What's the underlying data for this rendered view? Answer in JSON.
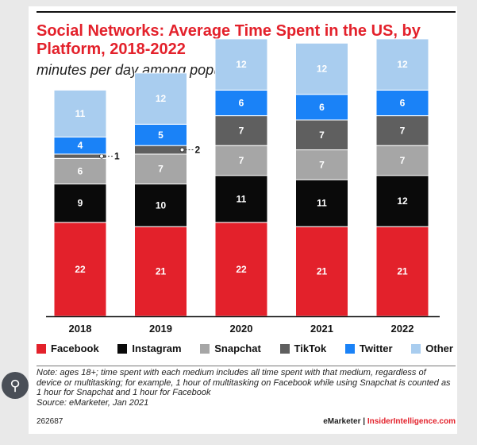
{
  "header": {
    "title": "Social Networks: Average Time Spent in the US, by Platform, 2018-2022",
    "subtitle": "minutes per day among population"
  },
  "note": "Note: ages 18+; time spent with each medium includes all time spent with that medium, regardless of device or multitasking; for example, 1 hour of multitasking on Facebook while using Snapchat is counted as 1 hour for Snapchat and 1 hour for Facebook",
  "source": "Source: eMarketer, Jan 2021",
  "footer": {
    "id": "262687",
    "brand_a": "eMarketer",
    "divider": "|",
    "brand_b": "InsiderIntelligence.com"
  },
  "lens_icon": "lens-search-icon",
  "chart_data": {
    "type": "bar",
    "stacked": true,
    "categories": [
      "2018",
      "2019",
      "2020",
      "2021",
      "2022"
    ],
    "series": [
      {
        "name": "Facebook",
        "color": "#e3212b",
        "values": [
          22,
          21,
          22,
          21,
          21
        ]
      },
      {
        "name": "Instagram",
        "color": "#0a0a0a",
        "values": [
          9,
          10,
          11,
          11,
          12
        ]
      },
      {
        "name": "Snapchat",
        "color": "#a6a6a6",
        "values": [
          6,
          7,
          7,
          7,
          7
        ]
      },
      {
        "name": "TikTok",
        "color": "#5f5f5f",
        "values": [
          1,
          2,
          7,
          7,
          7
        ]
      },
      {
        "name": "Twitter",
        "color": "#1a82f7",
        "values": [
          4,
          5,
          6,
          6,
          6
        ]
      },
      {
        "name": "Other",
        "color": "#a9cdef",
        "values": [
          11,
          12,
          12,
          12,
          12
        ]
      }
    ],
    "callouts": [
      {
        "category": "2018",
        "series": "TikTok",
        "label": "1"
      },
      {
        "category": "2019",
        "series": "TikTok",
        "label": "2"
      }
    ],
    "label_colors": {
      "Facebook": "#ffffff",
      "Instagram": "#ffffff",
      "Snapchat": "#ffffff",
      "TikTok": "#ffffff",
      "Twitter": "#ffffff",
      "Other": "#ffffff"
    },
    "legend_position": "bottom",
    "grid": false
  }
}
